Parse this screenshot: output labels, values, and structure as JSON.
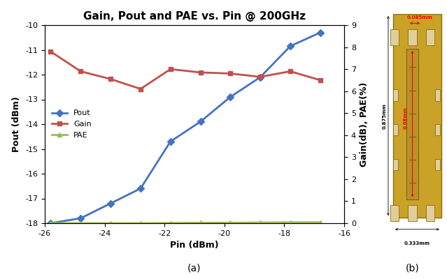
{
  "chart_data": {
    "type": "line",
    "title": "Gain, Pout and PAE vs. Pin @ 200GHz",
    "caption": "(a)",
    "x_label": "Pin (dBm)",
    "y_label": "Pout (dBm)",
    "y2_label": "Gain(dB), PAE(%)",
    "x": [
      -25.8,
      -24.8,
      -23.8,
      -22.8,
      -21.8,
      -20.8,
      -19.8,
      -18.8,
      -17.8,
      -16.8
    ],
    "series": [
      {
        "name": "Pout",
        "color": "#4472c4",
        "marker": "diamond",
        "values": [
          -18.0,
          -17.8,
          -17.2,
          -16.6,
          -14.7,
          -13.9,
          -12.9,
          -12.1,
          -10.85,
          -10.3
        ]
      },
      {
        "name": "Gain",
        "color": "#c0504d",
        "marker": "square",
        "axis": "y2",
        "values": [
          7.8,
          6.9,
          6.55,
          6.1,
          7.0,
          6.85,
          6.8,
          6.65,
          6.9,
          6.5
        ]
      },
      {
        "name": "PAE",
        "color": "#9bbb59",
        "marker": "triangle",
        "axis": "y2",
        "values": [
          0.0,
          0.0,
          0.0,
          0.0,
          0.01,
          0.02,
          0.02,
          0.03,
          0.04,
          0.04
        ]
      }
    ],
    "xlim": [
      -26,
      -16
    ],
    "xticks": [
      -26,
      -24,
      -22,
      -20,
      -18,
      -16
    ],
    "ylim": [
      -18,
      -10
    ],
    "yticks": [
      -18,
      -17,
      -16,
      -15,
      -14,
      -13,
      -12,
      -11,
      -10
    ],
    "y2lim": [
      0,
      9
    ],
    "y2ticks": [
      0,
      1,
      2,
      3,
      4,
      5,
      6,
      7,
      8,
      9
    ],
    "legend": "center left"
  },
  "die_photo": {
    "caption": "(b)",
    "width": "0.333mm",
    "height": "0.875mm",
    "pad_width": "0.085mm",
    "line_length": "0.68mm"
  }
}
